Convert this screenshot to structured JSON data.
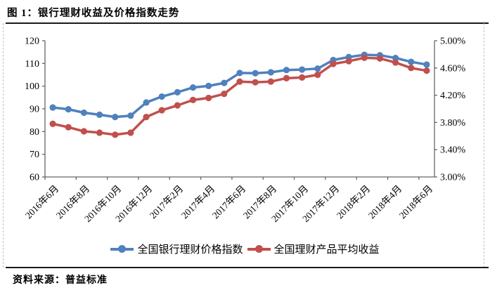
{
  "document": {
    "title": "图 1：银行理财收益及价格指数走势",
    "source": "资料来源：普益标准"
  },
  "chart_data": {
    "type": "line",
    "title": "银行理财收益及价格指数走势",
    "grid": false,
    "legend_position": "bottom",
    "x_tick_labels": [
      "2016年6月",
      "2016年8月",
      "2016年10月",
      "2016年12月",
      "2017年2月",
      "2017年4月",
      "2017年6月",
      "2017年8月",
      "2017年10月",
      "2017年12月",
      "2018年2月",
      "2018年4月",
      "2018年6月"
    ],
    "points_per_tick_interval": 2,
    "left_axis": {
      "min": 60,
      "max": 120,
      "tick_step": 10,
      "tick_labels": [
        "60",
        "70",
        "80",
        "90",
        "100",
        "110",
        "120"
      ]
    },
    "right_axis": {
      "min": 3.0,
      "max": 5.0,
      "tick_step": 0.4,
      "tick_labels": [
        "3.00%",
        "3.40%",
        "3.80%",
        "4.20%",
        "4.60%",
        "5.00%"
      ]
    },
    "axis_color": "#666666",
    "series": [
      {
        "name": "全国银行理财价格指数",
        "axis": "left",
        "color": "#4F81BD",
        "values": [
          90.6,
          89.8,
          88.3,
          87.4,
          86.4,
          87.0,
          92.8,
          95.4,
          97.3,
          99.4,
          100.1,
          101.4,
          105.8,
          105.7,
          106.1,
          107.1,
          107.3,
          107.7,
          111.5,
          112.8,
          113.8,
          113.6,
          112.4,
          110.7,
          109.5
        ]
      },
      {
        "name": "全国理财产品平均收益",
        "axis": "right",
        "color": "#C0504D",
        "values": [
          3.78,
          3.73,
          3.67,
          3.65,
          3.62,
          3.65,
          3.88,
          3.98,
          4.05,
          4.13,
          4.16,
          4.22,
          4.4,
          4.39,
          4.4,
          4.45,
          4.46,
          4.5,
          4.66,
          4.7,
          4.75,
          4.74,
          4.68,
          4.6,
          4.56
        ]
      }
    ]
  }
}
